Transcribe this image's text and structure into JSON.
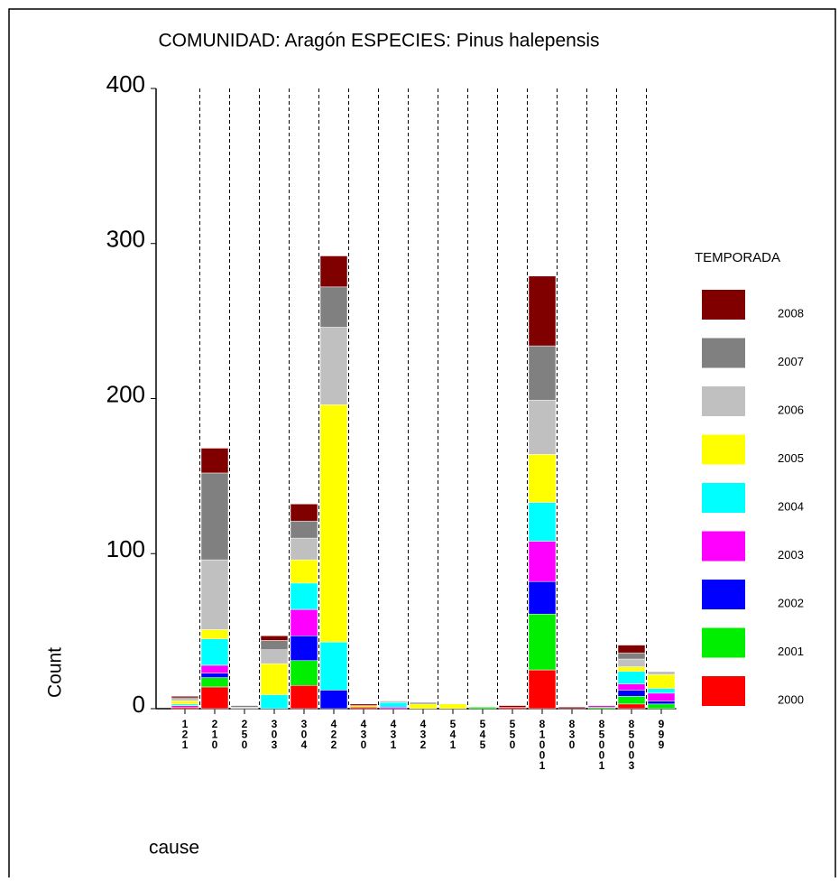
{
  "chart_data": {
    "type": "stacked_bar",
    "title": "COMUNIDAD:  Aragón    ESPECIES:  Pinus halepensis",
    "x_label": "cause",
    "y_label": "Count",
    "legend_title": "TEMPORADA",
    "categories": [
      "121",
      "210",
      "250",
      "303",
      "304",
      "422",
      "430",
      "431",
      "432",
      "541",
      "545",
      "550",
      "81001",
      "830",
      "85001",
      "85003",
      "999"
    ],
    "series": [
      {
        "name": "2000",
        "color": "#ff0000",
        "values": [
          1,
          14,
          0,
          0,
          15,
          0,
          1,
          0,
          0,
          0,
          0,
          1,
          25,
          0,
          0,
          3,
          0
        ]
      },
      {
        "name": "2001",
        "color": "#00ee00",
        "values": [
          0,
          6,
          0,
          0,
          16,
          0,
          0,
          0,
          0,
          0,
          1,
          0,
          36,
          0,
          1,
          5,
          3
        ]
      },
      {
        "name": "2002",
        "color": "#0000ff",
        "values": [
          0,
          3,
          0,
          0,
          16,
          12,
          0,
          0,
          0,
          0,
          0,
          0,
          21,
          0,
          0,
          4,
          2
        ]
      },
      {
        "name": "2003",
        "color": "#ff00ff",
        "values": [
          1,
          5,
          0,
          0,
          17,
          0,
          0,
          1,
          0,
          0,
          0,
          0,
          26,
          0,
          1,
          4,
          5
        ]
      },
      {
        "name": "2004",
        "color": "#00ffff",
        "values": [
          1,
          17,
          0,
          9,
          17,
          31,
          0,
          3,
          0,
          0,
          0,
          0,
          25,
          0,
          0,
          8,
          3
        ]
      },
      {
        "name": "2005",
        "color": "#ffff00",
        "values": [
          2,
          6,
          0,
          20,
          15,
          153,
          1,
          0,
          3,
          3,
          0,
          0,
          31,
          0,
          0,
          3,
          9
        ]
      },
      {
        "name": "2006",
        "color": "#c0c0c0",
        "values": [
          1,
          45,
          1,
          9,
          14,
          50,
          0,
          1,
          0,
          0,
          0,
          0,
          35,
          0,
          0,
          5,
          2
        ]
      },
      {
        "name": "2007",
        "color": "#808080",
        "values": [
          1,
          56,
          1,
          6,
          11,
          26,
          0,
          0,
          1,
          0,
          0,
          0,
          35,
          0,
          0,
          4,
          0
        ]
      },
      {
        "name": "2008",
        "color": "#800000",
        "values": [
          1,
          16,
          0,
          3,
          11,
          20,
          1,
          0,
          0,
          0,
          0,
          1,
          45,
          1,
          0,
          5,
          0
        ]
      }
    ],
    "ylim": [
      0,
      400
    ],
    "yticks": [
      0,
      100,
      200,
      300,
      400
    ],
    "grid": true
  }
}
